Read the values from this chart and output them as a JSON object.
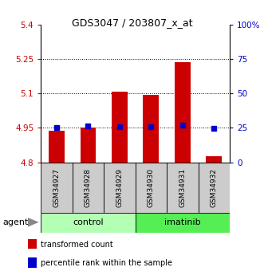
{
  "title": "GDS3047 / 203807_x_at",
  "samples": [
    "GSM34927",
    "GSM34928",
    "GSM34929",
    "GSM34930",
    "GSM34931",
    "GSM34932"
  ],
  "red_bar_values": [
    4.938,
    4.952,
    5.108,
    5.095,
    5.235,
    4.825
  ],
  "blue_marker_values": [
    4.95,
    4.957,
    4.956,
    4.956,
    4.962,
    4.948
  ],
  "y_min": 4.8,
  "y_max": 5.4,
  "y_ticks": [
    4.8,
    4.95,
    5.1,
    5.25,
    5.4
  ],
  "y_tick_labels": [
    "4.8",
    "4.95",
    "5.1",
    "5.25",
    "5.4"
  ],
  "y2_pct_ticks": [
    0,
    25,
    50,
    75,
    100
  ],
  "y2_labels": [
    "0",
    "25",
    "50",
    "75",
    "100%"
  ],
  "groups": [
    {
      "label": "control",
      "indices": [
        0,
        1,
        2
      ],
      "color": "#b3ffb3"
    },
    {
      "label": "imatinib",
      "indices": [
        3,
        4,
        5
      ],
      "color": "#55ee55"
    }
  ],
  "bar_color": "#cc0000",
  "marker_color": "#0000cc",
  "bar_width": 0.5,
  "tick_color_left": "#cc0000",
  "tick_color_right": "#0000cc",
  "sample_bg": "#cccccc",
  "agent_label": "agent",
  "legend_items": [
    {
      "label": "transformed count",
      "color": "#cc0000"
    },
    {
      "label": "percentile rank within the sample",
      "color": "#0000cc"
    }
  ]
}
